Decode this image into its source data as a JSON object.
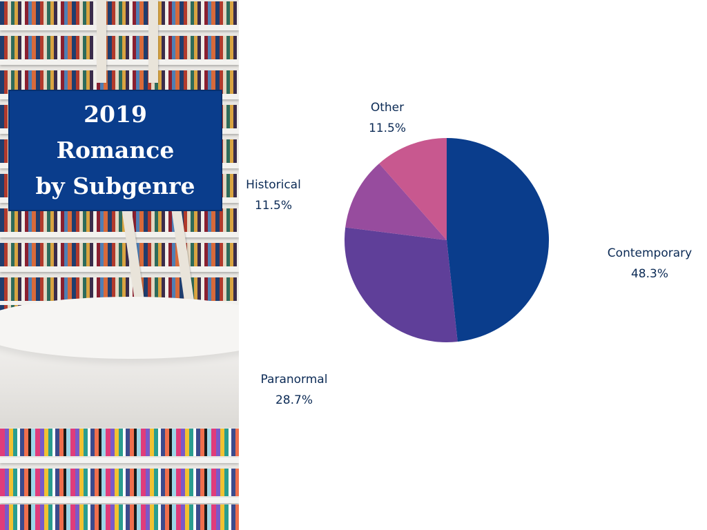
{
  "title": {
    "line1": "2019",
    "line2": "Romance",
    "line3": "by Subgenre"
  },
  "chart_data": {
    "type": "pie",
    "title": "2019 Romance by Subgenre",
    "slices": [
      {
        "label": "Contemporary",
        "value": 48.3,
        "display": "48.3%",
        "color": "#0a3d8c"
      },
      {
        "label": "Paranormal",
        "value": 28.7,
        "display": "28.7%",
        "color": "#5f3f99"
      },
      {
        "label": "Historical",
        "value": 11.5,
        "display": "11.5%",
        "color": "#974c9e"
      },
      {
        "label": "Other",
        "value": 11.5,
        "display": "11.5%",
        "color": "#c8588f"
      }
    ],
    "start_angle_deg": 0,
    "direction": "clockwise"
  }
}
